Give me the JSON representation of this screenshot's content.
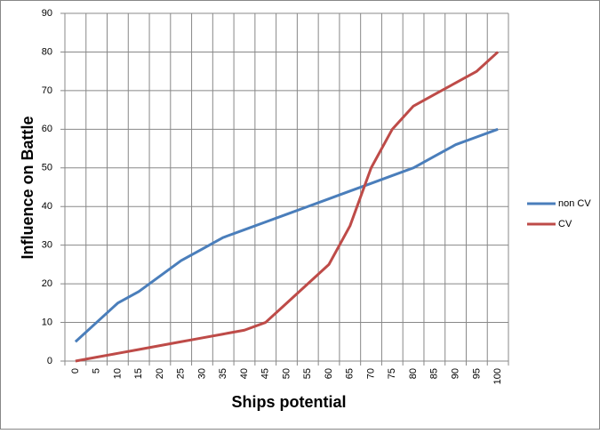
{
  "chart_data": {
    "type": "line",
    "x_label": "Ships potential",
    "y_label": "Influence on Battle",
    "categories": [
      "0",
      "5",
      "10",
      "15",
      "20",
      "25",
      "30",
      "35",
      "40",
      "45",
      "50",
      "55",
      "60",
      "65",
      "70",
      "75",
      "80",
      "85",
      "90",
      "95",
      "100"
    ],
    "series": [
      {
        "name": "non CV",
        "color": "#4a7ebb",
        "values": [
          5,
          10,
          15,
          18,
          22,
          26,
          29,
          32,
          34,
          36,
          38,
          40,
          42,
          44,
          46,
          48,
          50,
          53,
          56,
          58,
          60
        ]
      },
      {
        "name": "CV",
        "color": "#be4b48",
        "values": [
          0,
          1,
          2,
          3,
          4,
          5,
          6,
          7,
          8,
          10,
          15,
          20,
          25,
          35,
          50,
          60,
          66,
          69,
          72,
          75,
          80
        ]
      }
    ],
    "ylim": [
      0,
      90
    ],
    "yticks": [
      0,
      10,
      20,
      30,
      40,
      50,
      60,
      70,
      80,
      90
    ],
    "grid": true,
    "legend": "right"
  }
}
